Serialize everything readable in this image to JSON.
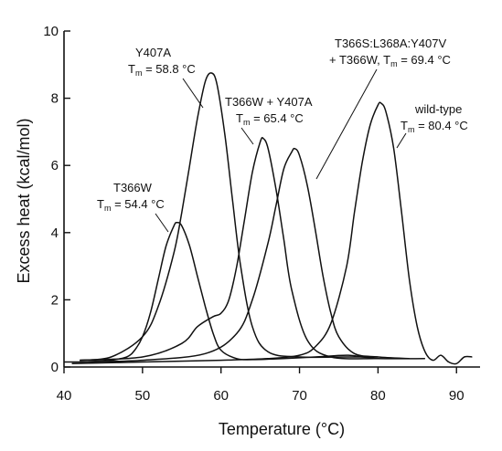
{
  "chart_data": {
    "type": "line",
    "title": "",
    "xlabel": "Temperature (°C)",
    "ylabel": "Excess heat (kcal/mol)",
    "xlim": [
      40,
      93
    ],
    "ylim": [
      0,
      10
    ],
    "xticks": [
      40,
      50,
      60,
      70,
      80,
      90
    ],
    "yticks": [
      0,
      2,
      4,
      6,
      8,
      10
    ],
    "grid": false,
    "legend": "none",
    "series": [
      {
        "color": "#111111",
        "x": [
          40,
          42,
          44,
          46,
          48,
          49,
          50,
          51,
          52,
          53,
          54,
          54.4,
          55,
          56,
          57,
          58,
          59,
          60,
          62,
          64,
          68,
          72,
          76,
          78,
          80
        ],
        "values": [
          0.15,
          0.15,
          0.17,
          0.2,
          0.3,
          0.5,
          0.9,
          1.6,
          2.6,
          3.6,
          4.2,
          4.3,
          4.2,
          3.6,
          2.7,
          1.8,
          1.0,
          0.5,
          0.25,
          0.22,
          0.25,
          0.3,
          0.35,
          0.3,
          0.25
        ]
      },
      {
        "color": "#111111",
        "x": [
          42,
          46,
          50,
          52,
          54,
          55,
          56,
          57,
          58,
          58.8,
          59.5,
          60.5,
          61.5,
          62.5,
          64,
          66,
          70,
          76,
          80
        ],
        "values": [
          0.2,
          0.3,
          0.9,
          1.8,
          3.4,
          4.6,
          6.0,
          7.4,
          8.5,
          8.75,
          8.4,
          6.9,
          4.9,
          3.0,
          1.2,
          0.45,
          0.3,
          0.3,
          0.3
        ]
      },
      {
        "color": "#111111",
        "x": [
          42,
          50,
          55,
          57,
          59,
          60,
          61,
          62,
          63,
          64,
          65,
          65.4,
          66,
          67,
          68,
          69,
          71,
          74,
          80,
          86
        ],
        "values": [
          0.2,
          0.3,
          0.7,
          1.2,
          1.5,
          1.6,
          2.0,
          3.0,
          4.4,
          5.8,
          6.7,
          6.8,
          6.5,
          5.3,
          3.8,
          2.3,
          0.8,
          0.3,
          0.25,
          0.25
        ]
      },
      {
        "color": "#111111",
        "x": [
          42,
          50,
          58,
          62,
          64,
          66,
          67,
          68,
          69,
          69.4,
          70,
          71,
          72,
          73,
          74,
          75,
          77,
          80,
          84
        ],
        "values": [
          0.15,
          0.2,
          0.4,
          1.0,
          2.0,
          3.7,
          4.8,
          5.9,
          6.4,
          6.5,
          6.3,
          5.4,
          4.1,
          2.7,
          1.6,
          0.9,
          0.4,
          0.3,
          0.25
        ]
      },
      {
        "color": "#111111",
        "x": [
          41,
          50,
          60,
          66,
          70,
          72,
          74,
          76,
          77,
          78,
          79,
          80,
          80.4,
          81,
          82,
          83,
          84,
          85,
          86,
          87,
          88,
          89,
          90,
          91,
          92
        ],
        "values": [
          0.1,
          0.15,
          0.2,
          0.25,
          0.35,
          0.6,
          1.3,
          3.0,
          4.6,
          6.1,
          7.2,
          7.8,
          7.85,
          7.6,
          6.5,
          4.6,
          2.6,
          1.2,
          0.45,
          0.2,
          0.35,
          0.15,
          0.1,
          0.3,
          0.3
        ]
      }
    ],
    "annotations": [
      {
        "line1": "Y407A",
        "tm_prefix": "T",
        "tm_sub": "m",
        "tm_value": " = 58.8 °C",
        "tip_x": 58.3,
        "tip_y": 7.8
      },
      {
        "line1": "T366W + Y407A",
        "tm_prefix": "T",
        "tm_sub": "m",
        "tm_value": " = 65.4 °C",
        "tip_x": 63.6,
        "tip_y": 6.5
      },
      {
        "line1": "T366W",
        "tm_prefix": "T",
        "tm_sub": "m",
        "tm_value": " = 54.4 °C",
        "tip_x": 53.0,
        "tip_y": 3.9
      },
      {
        "line1": "T366S:L368A:Y407V",
        "line2a": "+ T366W, T",
        "tm_sub": "m",
        "tm_value": " = 69.4 °C",
        "tip_x": 70.5,
        "tip_y": 5.4
      },
      {
        "line1": "wild-type",
        "tm_prefix": "T",
        "tm_sub": "m",
        "tm_value": " = 80.4 °C",
        "tip_x": 80.0,
        "tip_y": 7.4
      }
    ]
  }
}
